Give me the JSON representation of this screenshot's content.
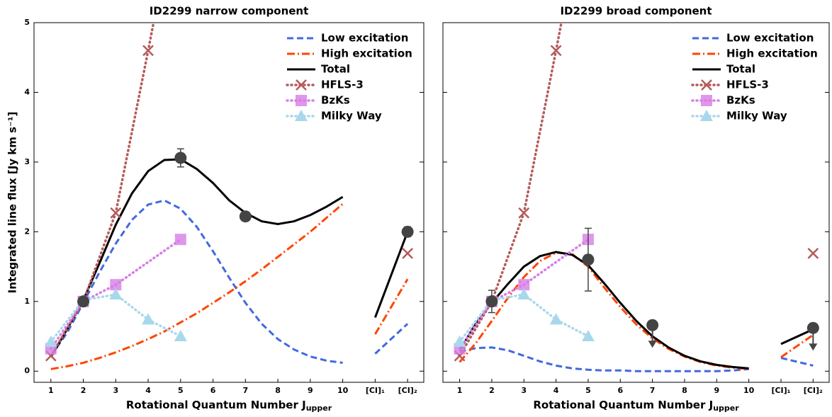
{
  "chart_data": [
    {
      "type": "line",
      "title": "ID2299 narrow component",
      "x_label": {
        "text": "Rotational Quantum Number J",
        "sub": "upper"
      },
      "y_label": "Integrated line flux [Jy km s⁻¹]",
      "xlim": [
        0.48,
        12.5
      ],
      "ylim": [
        -0.16,
        5
      ],
      "xticks": [
        1,
        2,
        3,
        4,
        5,
        6,
        7,
        8,
        9,
        10,
        {
          "value": 11,
          "label": "[CI]₁"
        },
        {
          "value": 12,
          "label": "[CI]₂"
        }
      ],
      "yticks": [
        0,
        1,
        2,
        3,
        4,
        5
      ],
      "show_ytick_labels": true,
      "legend": "upper right",
      "series": [
        {
          "name": "Low excitation",
          "color": "#4169e1",
          "style": "dashed",
          "marker": null,
          "x": [
            1,
            1.5,
            2,
            2.5,
            3,
            3.5,
            4,
            4.5,
            5,
            5.5,
            6,
            6.5,
            7,
            7.5,
            8,
            8.5,
            9,
            9.5,
            10,
            null,
            11,
            12
          ],
          "values": [
            0.22,
            0.55,
            0.98,
            1.42,
            1.83,
            2.17,
            2.39,
            2.45,
            2.33,
            2.07,
            1.72,
            1.34,
            0.98,
            0.68,
            0.46,
            0.31,
            0.21,
            0.15,
            0.12,
            null,
            0.25,
            0.68
          ]
        },
        {
          "name": "High excitation",
          "color": "#ff4500",
          "style": "dashdot",
          "marker": null,
          "x": [
            1,
            1.5,
            2,
            2.5,
            3,
            3.5,
            4,
            4.5,
            5,
            5.5,
            6,
            6.5,
            7,
            7.5,
            8,
            8.5,
            9,
            9.5,
            10,
            null,
            11,
            12
          ],
          "values": [
            0.03,
            0.07,
            0.12,
            0.19,
            0.27,
            0.36,
            0.46,
            0.57,
            0.7,
            0.83,
            0.98,
            1.13,
            1.29,
            1.46,
            1.64,
            1.82,
            2.0,
            2.2,
            2.4,
            null,
            0.53,
            1.32
          ]
        },
        {
          "name": "Total",
          "color": "#000000",
          "style": "solid",
          "marker": null,
          "x": [
            1,
            1.5,
            2,
            2.5,
            3,
            3.5,
            4,
            4.5,
            5,
            5.5,
            6,
            6.5,
            7,
            7.5,
            8,
            8.5,
            9,
            9.5,
            10,
            null,
            11,
            12
          ],
          "values": [
            0.2,
            0.6,
            1.02,
            1.55,
            2.1,
            2.55,
            2.87,
            3.03,
            3.04,
            2.9,
            2.7,
            2.45,
            2.27,
            2.15,
            2.11,
            2.15,
            2.24,
            2.36,
            2.5,
            null,
            0.77,
            2.0
          ]
        },
        {
          "name": "HFLS-3",
          "color": "#b55a5a",
          "style": "dotted",
          "marker": "x",
          "x": [
            1,
            2,
            3,
            4,
            5,
            null,
            12
          ],
          "values": [
            0.22,
            1.0,
            2.27,
            4.6,
            7.0,
            null,
            1.69
          ]
        },
        {
          "name": "BzKs",
          "color": "#d77de6",
          "style": "dotted",
          "marker": "square",
          "x": [
            1,
            2,
            3,
            5
          ],
          "values": [
            0.32,
            1.0,
            1.24,
            1.89
          ]
        },
        {
          "name": "Milky Way",
          "color": "#a8d8ec",
          "style": "dotted",
          "marker": "triangle",
          "x": [
            1,
            2,
            3,
            4,
            5
          ],
          "values": [
            0.42,
            1.02,
            1.1,
            0.74,
            0.5
          ]
        }
      ],
      "points": {
        "color": "#444444",
        "x": [
          2,
          5,
          7,
          12
        ],
        "values": [
          1.0,
          3.06,
          2.22,
          2.0
        ],
        "errors": [
          0.05,
          0.13,
          0.05,
          0.07
        ]
      },
      "upper_limits": {
        "color": "#444444",
        "x": [],
        "values": []
      }
    },
    {
      "type": "line",
      "title": "ID2299 broad component",
      "x_label": {
        "text": "Rotational Quantum Number J",
        "sub": "upper"
      },
      "xlim": [
        0.48,
        12.5
      ],
      "ylim": [
        -0.16,
        5
      ],
      "xticks": [
        1,
        2,
        3,
        4,
        5,
        6,
        7,
        8,
        9,
        10,
        {
          "value": 11,
          "label": "[CI]₁"
        },
        {
          "value": 12,
          "label": "[CI]₂"
        }
      ],
      "yticks": [
        0,
        1,
        2,
        3,
        4,
        5
      ],
      "show_ytick_labels": false,
      "legend": "upper right",
      "series": [
        {
          "name": "Low excitation",
          "color": "#4169e1",
          "style": "dashed",
          "marker": null,
          "x": [
            1,
            1.5,
            2,
            2.5,
            3,
            3.5,
            4,
            4.5,
            5,
            5.5,
            6,
            6.5,
            7,
            7.5,
            8,
            8.5,
            9,
            9.5,
            10,
            null,
            11,
            12
          ],
          "values": [
            0.28,
            0.33,
            0.34,
            0.3,
            0.22,
            0.14,
            0.08,
            0.04,
            0.02,
            0.01,
            0.01,
            0.0,
            0.0,
            0.0,
            0.0,
            0.0,
            0.0,
            0.01,
            0.03,
            null,
            0.19,
            0.08
          ]
        },
        {
          "name": "High excitation",
          "color": "#ff4500",
          "style": "dashdot",
          "marker": null,
          "x": [
            1,
            1.5,
            2,
            2.5,
            3,
            3.5,
            4,
            4.5,
            5,
            5.5,
            6,
            6.5,
            7,
            7.5,
            8,
            8.5,
            9,
            9.5,
            10,
            null,
            11,
            12
          ],
          "values": [
            0.13,
            0.4,
            0.72,
            1.05,
            1.35,
            1.58,
            1.7,
            1.68,
            1.5,
            1.2,
            0.92,
            0.67,
            0.47,
            0.32,
            0.21,
            0.13,
            0.08,
            0.05,
            0.03,
            null,
            0.2,
            0.52
          ]
        },
        {
          "name": "Total",
          "color": "#000000",
          "style": "solid",
          "marker": null,
          "x": [
            1,
            1.5,
            2,
            2.5,
            3,
            3.5,
            4,
            4.5,
            5,
            5.5,
            6,
            6.5,
            7,
            7.5,
            8,
            8.5,
            9,
            9.5,
            10,
            null,
            11,
            12
          ],
          "values": [
            0.3,
            0.68,
            0.98,
            1.25,
            1.5,
            1.65,
            1.71,
            1.67,
            1.52,
            1.26,
            0.98,
            0.72,
            0.5,
            0.34,
            0.22,
            0.14,
            0.09,
            0.06,
            0.04,
            null,
            0.39,
            0.6
          ]
        },
        {
          "name": "HFLS-3",
          "color": "#b55a5a",
          "style": "dotted",
          "marker": "x",
          "x": [
            1,
            2,
            3,
            4,
            5,
            null,
            12
          ],
          "values": [
            0.22,
            1.0,
            2.27,
            4.6,
            7.0,
            null,
            1.69
          ]
        },
        {
          "name": "BzKs",
          "color": "#d77de6",
          "style": "dotted",
          "marker": "square",
          "x": [
            1,
            2,
            3,
            5
          ],
          "values": [
            0.32,
            1.0,
            1.24,
            1.89
          ]
        },
        {
          "name": "Milky Way",
          "color": "#a8d8ec",
          "style": "dotted",
          "marker": "triangle",
          "x": [
            1,
            2,
            3,
            4,
            5
          ],
          "values": [
            0.42,
            1.02,
            1.1,
            0.74,
            0.5
          ]
        }
      ],
      "points": {
        "color": "#444444",
        "x": [
          2,
          5
        ],
        "values": [
          1.0,
          1.6
        ],
        "errors": [
          0.16,
          0.45
        ]
      },
      "upper_limits": {
        "color": "#444444",
        "x": [
          7,
          12
        ],
        "values": [
          0.66,
          0.62
        ]
      }
    }
  ]
}
